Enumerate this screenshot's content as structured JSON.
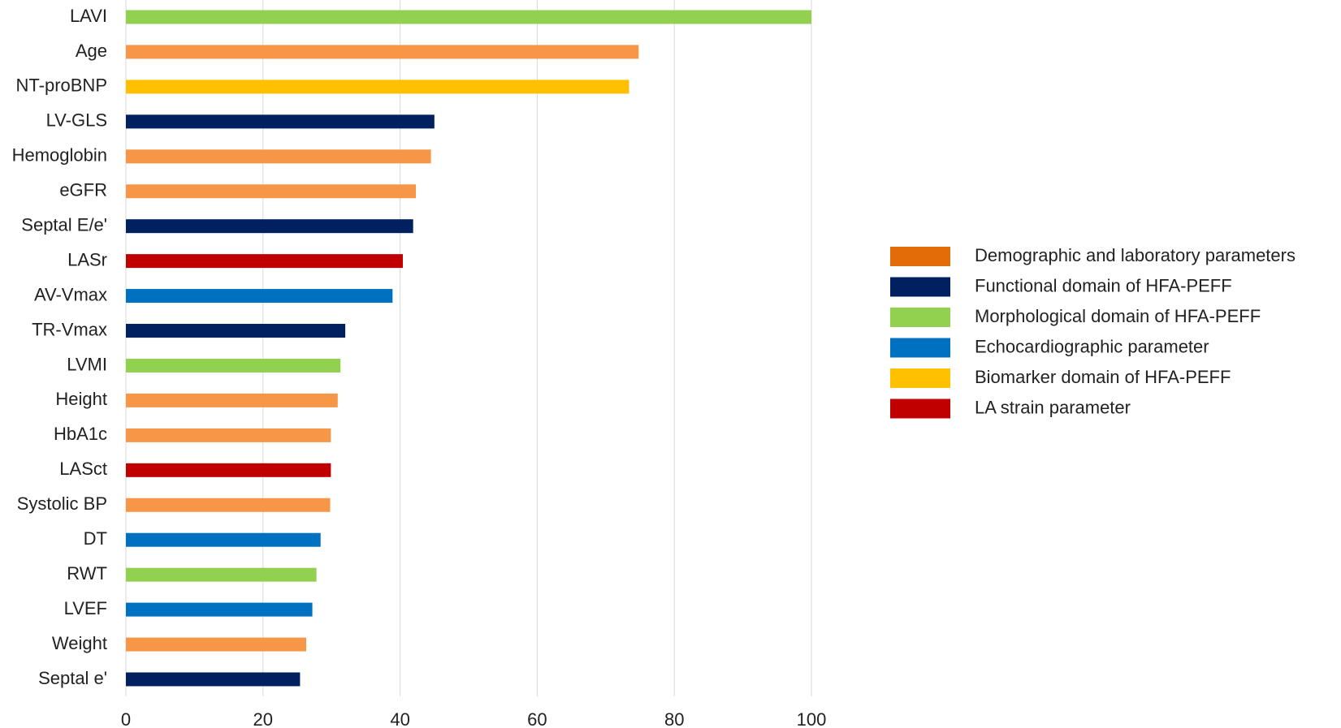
{
  "chart_data": {
    "type": "barh",
    "categories": [
      "LAVI",
      "Age",
      "NT-proBNP",
      "LV-GLS",
      "Hemoglobin",
      "eGFR",
      "Septal E/e'",
      "LASr",
      "AV-Vmax",
      "TR-Vmax",
      "LVMI",
      "Height",
      "HbA1c",
      "LASct",
      "Systolic BP",
      "DT",
      "RWT",
      "LVEF",
      "Weight",
      "Septal e'"
    ],
    "values": [
      100,
      74.8,
      73.4,
      45.0,
      44.5,
      42.3,
      41.9,
      40.4,
      38.9,
      32.0,
      31.3,
      30.9,
      29.9,
      29.9,
      29.8,
      28.4,
      27.8,
      27.2,
      26.3,
      25.4
    ],
    "colors": [
      "#92D050",
      "#F79646",
      "#FFC000",
      "#002060",
      "#F79646",
      "#F79646",
      "#002060",
      "#C00000",
      "#0070C0",
      "#002060",
      "#92D050",
      "#F79646",
      "#F79646",
      "#C00000",
      "#F79646",
      "#0070C0",
      "#92D050",
      "#0070C0",
      "#F79646",
      "#002060"
    ],
    "xlim": [
      0,
      100
    ],
    "xticks": [
      0,
      20,
      40,
      60,
      80,
      100
    ],
    "grid": true,
    "legend": [
      {
        "name": "Demographic and laboratory parameters",
        "color": "#E36C09"
      },
      {
        "name": "Functional domain of HFA-PEFF",
        "color": "#002060"
      },
      {
        "name": "Morphological domain of HFA-PEFF",
        "color": "#92D050"
      },
      {
        "name": "Echocardiographic parameter",
        "color": "#0070C0"
      },
      {
        "name": "Biomarker domain of HFA-PEFF",
        "color": "#FFC000"
      },
      {
        "name": "LA strain parameter",
        "color": "#C00000"
      }
    ]
  }
}
